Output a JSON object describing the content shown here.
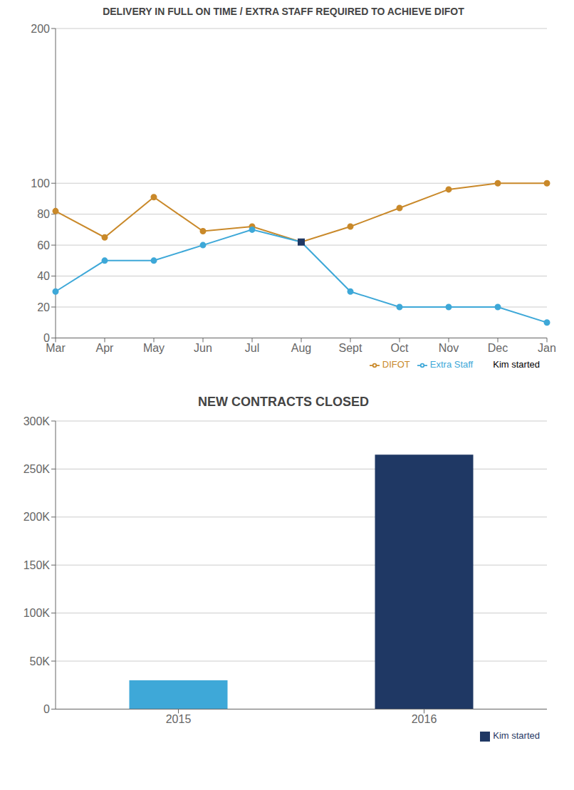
{
  "chart_data": [
    {
      "type": "line",
      "title": "DELIVERY IN FULL ON TIME / EXTRA STAFF REQUIRED TO ACHIEVE DIFOT",
      "categories": [
        "Mar",
        "Apr",
        "May",
        "Jun",
        "Jul",
        "Aug",
        "Sept",
        "Oct",
        "Nov",
        "Dec",
        "Jan"
      ],
      "series": [
        {
          "name": "Kim started",
          "type": "scatter",
          "marker": "square",
          "color": "#1F3864",
          "values": [
            null,
            null,
            null,
            null,
            null,
            62,
            null,
            null,
            null,
            null,
            null
          ]
        },
        {
          "name": "DIFOT",
          "type": "line",
          "marker": "circle",
          "color": "#C9892A",
          "values": [
            82,
            65,
            91,
            69,
            72,
            62,
            72,
            84,
            96,
            100,
            100
          ]
        },
        {
          "name": "Extra Staff",
          "type": "line",
          "marker": "circle",
          "color": "#3EA8D8",
          "values": [
            30,
            50,
            50,
            60,
            70,
            62,
            30,
            20,
            20,
            20,
            10
          ]
        }
      ],
      "ylim": [
        0,
        200
      ],
      "yticks": [
        0,
        20,
        40,
        60,
        80,
        100,
        200
      ],
      "grid": true,
      "legend": "lower right"
    },
    {
      "type": "bar",
      "title": "NEW CONTRACTS CLOSED",
      "categories": [
        "2015",
        "2016"
      ],
      "series": [
        {
          "color": "#3EA8D8",
          "values": [
            30000,
            null
          ]
        },
        {
          "name": "Kim started",
          "color": "#1F3864",
          "values": [
            null,
            265000
          ]
        }
      ],
      "stacked": true,
      "ylim": [
        0,
        300000
      ],
      "yticks": [
        0,
        {
          "value": 50000,
          "label": "50K"
        },
        {
          "value": 100000,
          "label": "100K"
        },
        {
          "value": 150000,
          "label": "150K"
        },
        {
          "value": 200000,
          "label": "200K"
        },
        {
          "value": 250000,
          "label": "250K"
        },
        {
          "value": 300000,
          "label": "300K"
        }
      ],
      "grid": true,
      "legend": "lower right"
    }
  ]
}
